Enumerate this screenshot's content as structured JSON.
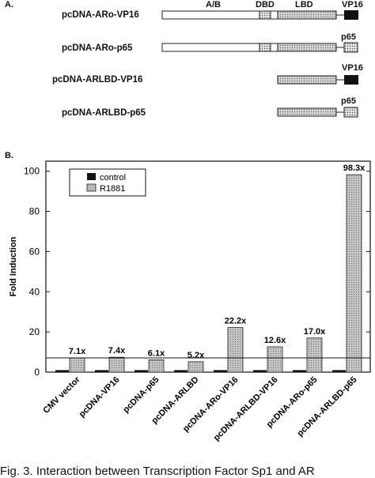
{
  "panel_a": {
    "label": "A.",
    "domain_headers": {
      "ab": "A/B",
      "dbd": "DBD",
      "lbd": "LBD",
      "vp16": "VP16"
    },
    "constructs": [
      {
        "label": "pcDNA-ARo-VP16",
        "tag": "VP16"
      },
      {
        "label": "pcDNA-ARo-p65",
        "tag": "p65"
      },
      {
        "label": "pcDNA-ARLBD-VP16",
        "tag": "VP16"
      },
      {
        "label": "pcDNA-ARLBD-p65",
        "tag": "p65"
      }
    ]
  },
  "panel_b": {
    "label": "B."
  },
  "chart_data": {
    "type": "bar",
    "ylabel": "Fold Induction",
    "ylim": [
      0,
      105
    ],
    "yticks": [
      0,
      20,
      40,
      60,
      80,
      100
    ],
    "reference_line": 7.1,
    "legend_position": "top-left",
    "categories": [
      "CMV vector",
      "pcDNA-VP16",
      "pcDNA-p65",
      "pcDNA-ARLBD",
      "pcDNA-ARo-VP16",
      "pcDNA-ARLBD-VP16",
      "pcDNA-ARo-p65",
      "pcDNA-ARLBD-p65"
    ],
    "series": [
      {
        "name": "control",
        "color": "#111111",
        "values": [
          1.0,
          1.0,
          1.0,
          1.0,
          1.0,
          1.0,
          1.0,
          1.0
        ]
      },
      {
        "name": "R1881",
        "color": "#b8b8b8",
        "values": [
          7.1,
          7.4,
          6.1,
          5.2,
          22.2,
          12.6,
          17.0,
          98.3
        ]
      }
    ],
    "data_labels": [
      "7.1x",
      "7.4x",
      "6.1x",
      "5.2x",
      "22.2x",
      "12.6x",
      "17.0x",
      "98.3x"
    ]
  },
  "caption": "Fig. 3. Interaction between Transcription Factor Sp1 and AR"
}
